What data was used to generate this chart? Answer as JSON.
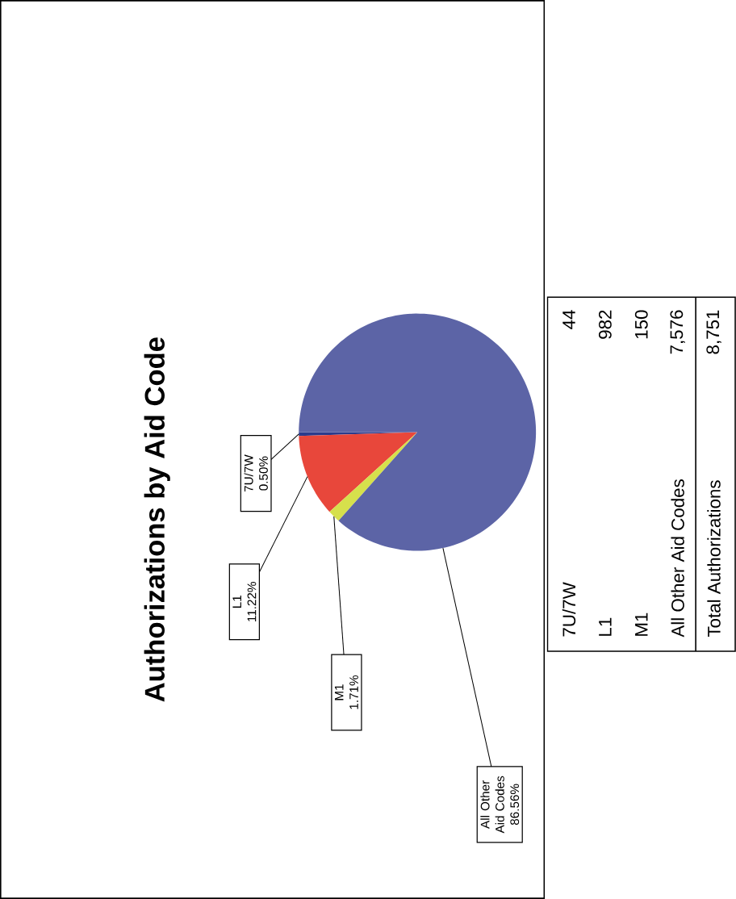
{
  "chart_data": {
    "type": "pie",
    "title": "Authorizations by Aid Code",
    "categories": [
      "7U/7W",
      "L1",
      "M1",
      "All Other Aid Codes"
    ],
    "values": [
      0.5,
      11.22,
      1.71,
      86.56
    ],
    "value_labels": [
      "0.50%",
      "11.22%",
      "1.71%",
      "86.56%"
    ],
    "colors": [
      "#2b3b8c",
      "#e8473b",
      "#d6e04c",
      "#5c64a6"
    ],
    "annotations": [
      "44",
      "982",
      "150",
      "7,576",
      "Total Authorizations",
      "8,751"
    ]
  }
}
